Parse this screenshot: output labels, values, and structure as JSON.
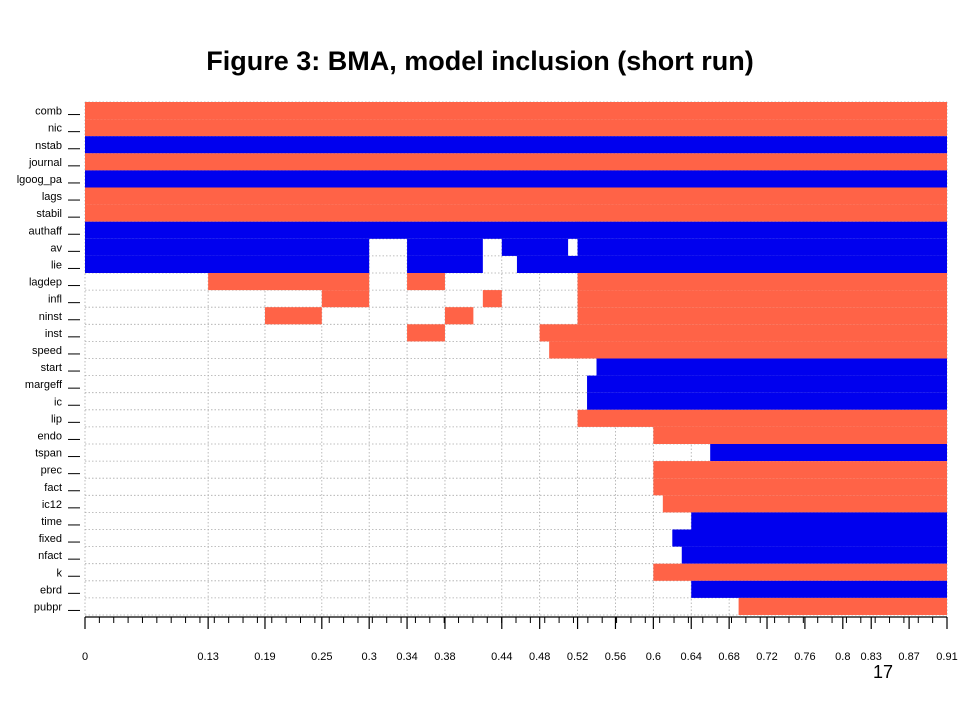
{
  "page": {
    "title": "Figure 3: BMA, model inclusion (short run)",
    "page_number": "17"
  },
  "colors": {
    "positive": "#FF6347",
    "negative": "#0000EE",
    "tick": "#000000",
    "grid": "#AAAAAA"
  },
  "chart_data": {
    "type": "heatmap",
    "title": "Figure 3: BMA, model inclusion (short run)",
    "xlabel": "",
    "ylabel": "",
    "x_ticks": [
      "0",
      "0.13",
      "0.19",
      "0.25",
      "0.3",
      "0.34",
      "0.38",
      "0.44",
      "0.48",
      "0.52",
      "0.56",
      "0.6",
      "0.64",
      "0.68",
      "0.72",
      "0.76",
      "0.8",
      "0.83",
      "0.87",
      "0.91"
    ],
    "xlim": [
      0,
      0.91
    ],
    "grid": true,
    "legend": "none",
    "variables": [
      {
        "name": "comb",
        "segments": [
          [
            0,
            0.91,
            "positive"
          ]
        ]
      },
      {
        "name": "nic",
        "segments": [
          [
            0,
            0.91,
            "positive"
          ]
        ]
      },
      {
        "name": "nstab",
        "segments": [
          [
            0,
            0.91,
            "negative"
          ]
        ]
      },
      {
        "name": "journal",
        "segments": [
          [
            0,
            0.91,
            "positive"
          ]
        ]
      },
      {
        "name": "lgoog_pa",
        "segments": [
          [
            0,
            0.91,
            "negative"
          ]
        ]
      },
      {
        "name": "lags",
        "segments": [
          [
            0,
            0.91,
            "positive"
          ]
        ]
      },
      {
        "name": "stabil",
        "segments": [
          [
            0,
            0.91,
            "positive"
          ]
        ]
      },
      {
        "name": "authaff",
        "segments": [
          [
            0,
            0.91,
            "negative"
          ]
        ]
      },
      {
        "name": "av",
        "segments": [
          [
            0,
            0.3,
            "negative"
          ],
          [
            0.34,
            0.42,
            "negative"
          ],
          [
            0.44,
            0.51,
            "negative"
          ],
          [
            0.52,
            0.91,
            "negative"
          ]
        ]
      },
      {
        "name": "lie",
        "segments": [
          [
            0,
            0.3,
            "negative"
          ],
          [
            0.34,
            0.42,
            "negative"
          ],
          [
            0.456,
            0.91,
            "negative"
          ]
        ]
      },
      {
        "name": "lagdep",
        "segments": [
          [
            0.13,
            0.3,
            "positive"
          ],
          [
            0.34,
            0.38,
            "positive"
          ],
          [
            0.52,
            0.91,
            "positive"
          ]
        ]
      },
      {
        "name": "infl",
        "segments": [
          [
            0.25,
            0.3,
            "positive"
          ],
          [
            0.42,
            0.44,
            "positive"
          ],
          [
            0.52,
            0.91,
            "positive"
          ]
        ]
      },
      {
        "name": "ninst",
        "segments": [
          [
            0.19,
            0.25,
            "positive"
          ],
          [
            0.38,
            0.41,
            "positive"
          ],
          [
            0.52,
            0.91,
            "positive"
          ]
        ]
      },
      {
        "name": "inst",
        "segments": [
          [
            0.34,
            0.38,
            "positive"
          ],
          [
            0.48,
            0.91,
            "positive"
          ]
        ]
      },
      {
        "name": "speed",
        "segments": [
          [
            0.49,
            0.91,
            "positive"
          ]
        ]
      },
      {
        "name": "start",
        "segments": [
          [
            0.54,
            0.91,
            "negative"
          ]
        ]
      },
      {
        "name": "margeff",
        "segments": [
          [
            0.53,
            0.91,
            "negative"
          ]
        ]
      },
      {
        "name": "ic",
        "segments": [
          [
            0.53,
            0.91,
            "negative"
          ]
        ]
      },
      {
        "name": "lip",
        "segments": [
          [
            0.52,
            0.91,
            "positive"
          ]
        ]
      },
      {
        "name": "endo",
        "segments": [
          [
            0.6,
            0.91,
            "positive"
          ]
        ]
      },
      {
        "name": "tspan",
        "segments": [
          [
            0.66,
            0.91,
            "negative"
          ]
        ]
      },
      {
        "name": "prec",
        "segments": [
          [
            0.6,
            0.91,
            "positive"
          ]
        ]
      },
      {
        "name": "fact",
        "segments": [
          [
            0.6,
            0.91,
            "positive"
          ]
        ]
      },
      {
        "name": "ic12",
        "segments": [
          [
            0.61,
            0.91,
            "positive"
          ]
        ]
      },
      {
        "name": "time",
        "segments": [
          [
            0.64,
            0.91,
            "negative"
          ]
        ]
      },
      {
        "name": "fixed",
        "segments": [
          [
            0.62,
            0.91,
            "negative"
          ]
        ]
      },
      {
        "name": "nfact",
        "segments": [
          [
            0.63,
            0.91,
            "negative"
          ]
        ]
      },
      {
        "name": "k",
        "segments": [
          [
            0.6,
            0.91,
            "positive"
          ]
        ]
      },
      {
        "name": "ebrd",
        "segments": [
          [
            0.64,
            0.91,
            "negative"
          ]
        ]
      },
      {
        "name": "pubpr",
        "segments": [
          [
            0.69,
            0.91,
            "positive"
          ]
        ]
      }
    ]
  }
}
